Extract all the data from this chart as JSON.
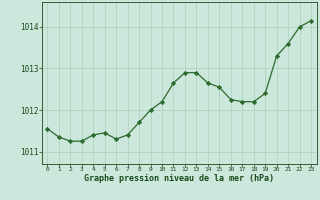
{
  "hours": [
    0,
    1,
    2,
    3,
    4,
    5,
    6,
    7,
    8,
    9,
    10,
    11,
    12,
    13,
    14,
    15,
    16,
    17,
    18,
    19,
    20,
    21,
    22,
    23
  ],
  "pressure": [
    1011.55,
    1011.35,
    1011.25,
    1011.25,
    1011.4,
    1011.45,
    1011.3,
    1011.4,
    1011.7,
    1012.0,
    1012.2,
    1012.65,
    1012.9,
    1012.9,
    1012.65,
    1012.55,
    1012.25,
    1012.2,
    1012.2,
    1012.4,
    1013.3,
    1013.6,
    1014.0,
    1014.15
  ],
  "line_color": "#2d6a2d",
  "marker": "D",
  "marker_size": 2.2,
  "bg_color": "#cce8dc",
  "grid_color": "#aad0bc",
  "xlabel": "Graphe pression niveau de la mer (hPa)",
  "xlabel_color": "#1a4a1a",
  "tick_color": "#1a4a1a",
  "ylim": [
    1010.7,
    1014.6
  ],
  "yticks": [
    1011,
    1012,
    1013,
    1014
  ],
  "xlim": [
    -0.5,
    23.5
  ],
  "xticks": [
    0,
    1,
    2,
    3,
    4,
    5,
    6,
    7,
    8,
    9,
    10,
    11,
    12,
    13,
    14,
    15,
    16,
    17,
    18,
    19,
    20,
    21,
    22,
    23
  ]
}
